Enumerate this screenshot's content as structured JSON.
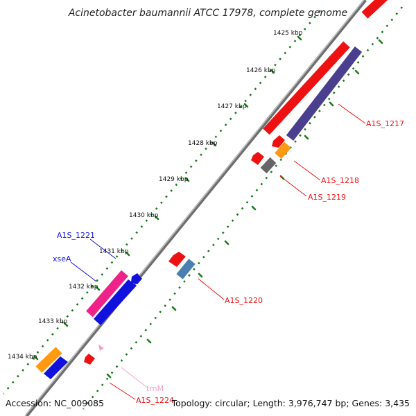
{
  "title": "Acinetobacter baumannii ATCC 17978, complete genome",
  "footer": {
    "accession": "Accession: NC_009085",
    "summary": "Topology: circular; Length: 3,976,747 bp; Genes: 3,435"
  },
  "ticks": [
    "1425 kbp",
    "1426 kbp",
    "1427 kbp",
    "1428 kbp",
    "1429 kbp",
    "1430 kbp",
    "1431 kbp",
    "1432 kbp",
    "1433 kbp",
    "1434 kbp"
  ],
  "gene_labels": {
    "a1s_1217": "A1S_1217",
    "a1s_1218": "A1S_1218",
    "a1s_1219": "A1S_1219",
    "a1s_1220": "A1S_1220",
    "a1s_1221": "A1S_1221",
    "xsea": "xseA",
    "trnm": "trnM",
    "a1s_1224": "A1S_1224"
  },
  "colors": {
    "cds_red": "#ee1111",
    "cds_blue": "#1111dd",
    "cds_magenta": "#ee2288",
    "cds_orange": "#ff9911",
    "cds_purple": "#4a3f8f",
    "cds_steel": "#4a7fb0",
    "cds_gray": "#666666",
    "trna_pink": "#f4a0c8",
    "tick_green": "#1a7a1a",
    "backbone": "#8a8a8a"
  }
}
